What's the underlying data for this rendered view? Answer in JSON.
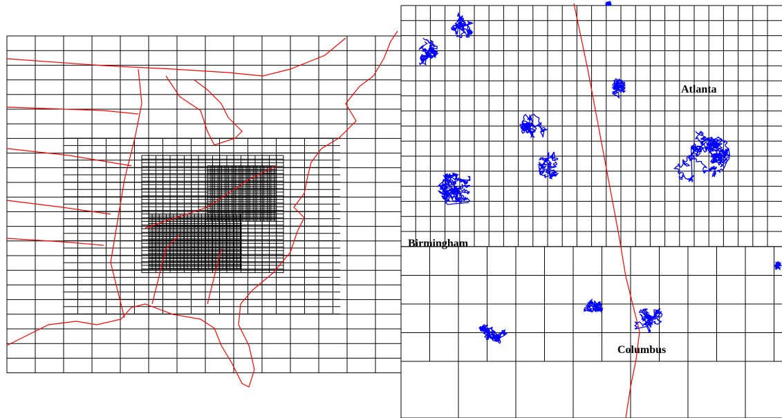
{
  "cities": [
    {
      "label": "Atlanta"
    },
    {
      "label": "Birmingham"
    },
    {
      "label": "Columbus"
    }
  ]
}
